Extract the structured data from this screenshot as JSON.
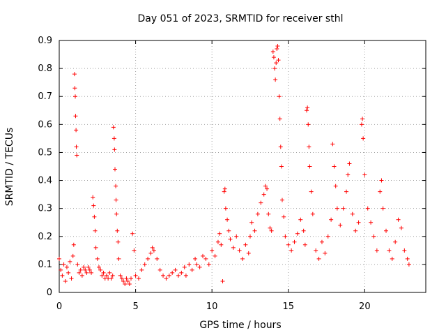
{
  "chart_data": {
    "type": "scatter",
    "title": "Day 051 of 2023, SRMTID for receiver sthl",
    "xlabel": "GPS time / hours",
    "ylabel": "SRMTID / TECUs",
    "xlim": [
      0,
      24
    ],
    "ylim": [
      0,
      0.9
    ],
    "x_ticks": [
      0,
      5,
      10,
      15,
      20
    ],
    "x_tick_labels": [
      "0",
      "5",
      "10",
      "15",
      "20"
    ],
    "y_ticks": [
      0,
      0.1,
      0.2,
      0.3,
      0.4,
      0.5,
      0.6,
      0.7,
      0.8,
      0.9
    ],
    "y_tick_labels": [
      "0",
      "0.1",
      "0.2",
      "0.3",
      "0.4",
      "0.5",
      "0.6",
      "0.7",
      "0.8",
      "0.9"
    ],
    "grid": true,
    "marker": "+",
    "color": "#ff0000",
    "series": [
      {
        "name": "SRMTID",
        "points": [
          [
            0.0,
            0.12
          ],
          [
            0.1,
            0.08
          ],
          [
            0.2,
            0.06
          ],
          [
            0.3,
            0.1
          ],
          [
            0.4,
            0.04
          ],
          [
            0.5,
            0.09
          ],
          [
            0.6,
            0.07
          ],
          [
            0.7,
            0.11
          ],
          [
            0.8,
            0.05
          ],
          [
            0.9,
            0.13
          ],
          [
            0.95,
            0.17
          ],
          [
            1.0,
            0.78
          ],
          [
            1.02,
            0.73
          ],
          [
            1.05,
            0.7
          ],
          [
            1.07,
            0.63
          ],
          [
            1.1,
            0.58
          ],
          [
            1.12,
            0.52
          ],
          [
            1.15,
            0.49
          ],
          [
            1.2,
            0.1
          ],
          [
            1.3,
            0.07
          ],
          [
            1.4,
            0.08
          ],
          [
            1.5,
            0.06
          ],
          [
            1.6,
            0.09
          ],
          [
            1.7,
            0.08
          ],
          [
            1.8,
            0.07
          ],
          [
            1.9,
            0.09
          ],
          [
            2.0,
            0.08
          ],
          [
            2.1,
            0.07
          ],
          [
            2.2,
            0.34
          ],
          [
            2.25,
            0.31
          ],
          [
            2.3,
            0.27
          ],
          [
            2.35,
            0.22
          ],
          [
            2.4,
            0.16
          ],
          [
            2.5,
            0.12
          ],
          [
            2.6,
            0.09
          ],
          [
            2.7,
            0.08
          ],
          [
            2.8,
            0.06
          ],
          [
            2.9,
            0.07
          ],
          [
            3.0,
            0.05
          ],
          [
            3.1,
            0.06
          ],
          [
            3.2,
            0.05
          ],
          [
            3.3,
            0.07
          ],
          [
            3.4,
            0.05
          ],
          [
            3.5,
            0.06
          ],
          [
            3.55,
            0.59
          ],
          [
            3.6,
            0.55
          ],
          [
            3.62,
            0.51
          ],
          [
            3.65,
            0.44
          ],
          [
            3.7,
            0.38
          ],
          [
            3.72,
            0.33
          ],
          [
            3.75,
            0.28
          ],
          [
            3.8,
            0.22
          ],
          [
            3.85,
            0.18
          ],
          [
            3.9,
            0.12
          ],
          [
            4.0,
            0.06
          ],
          [
            4.1,
            0.05
          ],
          [
            4.2,
            0.04
          ],
          [
            4.3,
            0.03
          ],
          [
            4.4,
            0.05
          ],
          [
            4.5,
            0.04
          ],
          [
            4.6,
            0.03
          ],
          [
            4.7,
            0.05
          ],
          [
            4.8,
            0.21
          ],
          [
            4.9,
            0.15
          ],
          [
            5.0,
            0.06
          ],
          [
            5.2,
            0.05
          ],
          [
            5.4,
            0.08
          ],
          [
            5.6,
            0.1
          ],
          [
            5.8,
            0.12
          ],
          [
            6.0,
            0.14
          ],
          [
            6.1,
            0.16
          ],
          [
            6.2,
            0.15
          ],
          [
            6.4,
            0.12
          ],
          [
            6.6,
            0.08
          ],
          [
            6.8,
            0.06
          ],
          [
            7.0,
            0.05
          ],
          [
            7.2,
            0.06
          ],
          [
            7.4,
            0.07
          ],
          [
            7.6,
            0.08
          ],
          [
            7.8,
            0.06
          ],
          [
            8.0,
            0.07
          ],
          [
            8.2,
            0.09
          ],
          [
            8.3,
            0.06
          ],
          [
            8.5,
            0.1
          ],
          [
            8.7,
            0.08
          ],
          [
            8.9,
            0.12
          ],
          [
            9.0,
            0.1
          ],
          [
            9.2,
            0.09
          ],
          [
            9.4,
            0.13
          ],
          [
            9.6,
            0.12
          ],
          [
            9.8,
            0.1
          ],
          [
            10.0,
            0.15
          ],
          [
            10.2,
            0.13
          ],
          [
            10.4,
            0.18
          ],
          [
            10.5,
            0.21
          ],
          [
            10.6,
            0.17
          ],
          [
            10.7,
            0.04
          ],
          [
            10.8,
            0.36
          ],
          [
            10.85,
            0.37
          ],
          [
            10.9,
            0.3
          ],
          [
            11.0,
            0.26
          ],
          [
            11.1,
            0.22
          ],
          [
            11.2,
            0.19
          ],
          [
            11.4,
            0.16
          ],
          [
            11.6,
            0.2
          ],
          [
            11.8,
            0.15
          ],
          [
            12.0,
            0.12
          ],
          [
            12.2,
            0.17
          ],
          [
            12.4,
            0.14
          ],
          [
            12.5,
            0.2
          ],
          [
            12.6,
            0.25
          ],
          [
            12.8,
            0.22
          ],
          [
            13.0,
            0.28
          ],
          [
            13.2,
            0.32
          ],
          [
            13.4,
            0.35
          ],
          [
            13.5,
            0.38
          ],
          [
            13.6,
            0.37
          ],
          [
            13.7,
            0.28
          ],
          [
            13.8,
            0.23
          ],
          [
            13.9,
            0.22
          ],
          [
            14.0,
            0.86
          ],
          [
            14.05,
            0.84
          ],
          [
            14.1,
            0.8
          ],
          [
            14.15,
            0.76
          ],
          [
            14.2,
            0.82
          ],
          [
            14.25,
            0.87
          ],
          [
            14.3,
            0.88
          ],
          [
            14.35,
            0.83
          ],
          [
            14.4,
            0.7
          ],
          [
            14.45,
            0.62
          ],
          [
            14.5,
            0.52
          ],
          [
            14.55,
            0.45
          ],
          [
            14.6,
            0.33
          ],
          [
            14.7,
            0.27
          ],
          [
            14.8,
            0.2
          ],
          [
            15.0,
            0.17
          ],
          [
            15.2,
            0.15
          ],
          [
            15.4,
            0.18
          ],
          [
            15.6,
            0.21
          ],
          [
            15.8,
            0.26
          ],
          [
            16.0,
            0.22
          ],
          [
            16.1,
            0.17
          ],
          [
            16.2,
            0.65
          ],
          [
            16.25,
            0.66
          ],
          [
            16.3,
            0.6
          ],
          [
            16.35,
            0.52
          ],
          [
            16.4,
            0.45
          ],
          [
            16.5,
            0.36
          ],
          [
            16.6,
            0.28
          ],
          [
            16.8,
            0.15
          ],
          [
            17.0,
            0.12
          ],
          [
            17.2,
            0.18
          ],
          [
            17.4,
            0.14
          ],
          [
            17.6,
            0.2
          ],
          [
            17.8,
            0.26
          ],
          [
            17.9,
            0.53
          ],
          [
            18.0,
            0.45
          ],
          [
            18.1,
            0.38
          ],
          [
            18.2,
            0.3
          ],
          [
            18.4,
            0.24
          ],
          [
            18.6,
            0.3
          ],
          [
            18.8,
            0.36
          ],
          [
            18.9,
            0.42
          ],
          [
            19.0,
            0.46
          ],
          [
            19.2,
            0.28
          ],
          [
            19.4,
            0.22
          ],
          [
            19.6,
            0.25
          ],
          [
            19.8,
            0.6
          ],
          [
            19.85,
            0.62
          ],
          [
            19.9,
            0.55
          ],
          [
            20.0,
            0.42
          ],
          [
            20.2,
            0.3
          ],
          [
            20.4,
            0.25
          ],
          [
            20.6,
            0.2
          ],
          [
            20.8,
            0.15
          ],
          [
            21.0,
            0.36
          ],
          [
            21.1,
            0.4
          ],
          [
            21.2,
            0.3
          ],
          [
            21.4,
            0.22
          ],
          [
            21.6,
            0.15
          ],
          [
            21.8,
            0.12
          ],
          [
            22.0,
            0.18
          ],
          [
            22.2,
            0.26
          ],
          [
            22.4,
            0.23
          ],
          [
            22.6,
            0.15
          ],
          [
            22.8,
            0.12
          ],
          [
            22.9,
            0.1
          ]
        ]
      }
    ]
  }
}
